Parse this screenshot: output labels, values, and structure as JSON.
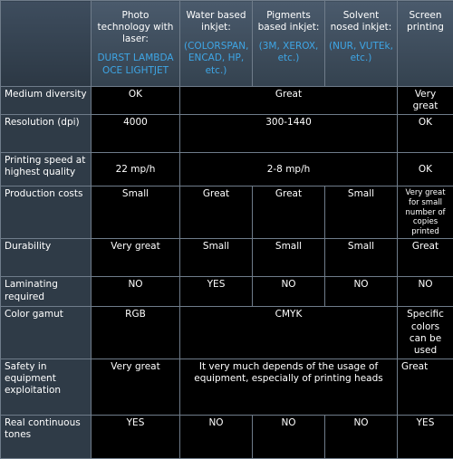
{
  "table": {
    "columns": [
      {
        "title": "Photo technology with laser:",
        "subtitle": "DURST LAMBDA OCE LIGHTJET"
      },
      {
        "title": "Water based inkjet:",
        "subtitle": "(COLORSPAN, ENCAD, HP, etc.)"
      },
      {
        "title": "Pigments based inkjet:",
        "subtitle": "(3M, XEROX, etc.)"
      },
      {
        "title": "Solvent nosed inkjet:",
        "subtitle": "(NUR, VUTEk, etc.)"
      },
      {
        "title": "Screen printing"
      }
    ],
    "rows": [
      {
        "label": "Medium diversity",
        "cells": [
          "OK",
          "Great",
          "Very great"
        ]
      },
      {
        "label": "Resolution (dpi)",
        "cells": [
          "4000",
          "300-1440",
          "OK"
        ]
      },
      {
        "label": "Printing speed at highest quality",
        "cells": [
          "22 mp/h",
          "2-8 mp/h",
          "OK"
        ]
      },
      {
        "label": "Production costs",
        "cells": [
          "Small",
          "Great",
          "Great",
          "Small",
          "Very great for small number of copies printed"
        ]
      },
      {
        "label": "Durability",
        "cells": [
          "Very great",
          "Small",
          "Small",
          "Small",
          "Great"
        ]
      },
      {
        "label": "Laminating required",
        "cells": [
          "NO",
          "YES",
          "NO",
          "NO",
          "NO"
        ]
      },
      {
        "label": "Color gamut",
        "cells": [
          "RGB",
          "CMYK",
          "Specific colors can be used"
        ]
      },
      {
        "label": "Safety in equipment exploitation",
        "cells": [
          "Very great",
          "It very much depends of the usage of equipment, especially of printing heads",
          "Great"
        ]
      },
      {
        "label": "Real continuous tones",
        "cells": [
          "YES",
          "NO",
          "NO",
          "NO",
          "YES"
        ]
      }
    ]
  }
}
